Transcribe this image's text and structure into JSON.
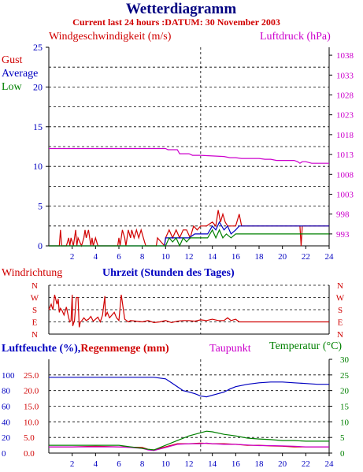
{
  "header": {
    "title": "Wetterdiagramm",
    "subtitle": "Current last 24 hours :DATUM: 30 November 2003"
  },
  "colors": {
    "title": "#000080",
    "subtitle": "#d00000",
    "gust": "#d00000",
    "average": "#0000c0",
    "low": "#008000",
    "pressure": "#cc00cc",
    "humidity": "#0000c0",
    "rain": "#d00000",
    "dewpoint": "#cc00cc",
    "temperature": "#008000",
    "axis": "#000000",
    "grid": "#000000"
  },
  "chart_data": [
    {
      "type": "line",
      "id": "wind-pressure",
      "title_left": "Windgeschwindigkeit (m/s)",
      "title_right": "Luftdruck (hPa)",
      "legend": [
        "Gust",
        "Average",
        "Low"
      ],
      "legend_position": "left",
      "xlim": [
        0,
        24
      ],
      "x_ticks": [
        2,
        4,
        6,
        8,
        10,
        12,
        14,
        16,
        18,
        20,
        22,
        24
      ],
      "ylim_left": [
        0,
        25
      ],
      "y_ticks_left": [
        0,
        5,
        10,
        15,
        20,
        25
      ],
      "ylim_right": [
        990,
        1040
      ],
      "y_ticks_right": [
        993,
        998,
        1003,
        1008,
        1013,
        1018,
        1023,
        1028,
        1033,
        1038
      ],
      "grid": true,
      "series": [
        {
          "name": "Gust",
          "axis": "left",
          "x": [
            0,
            0.9,
            1.0,
            1.1,
            1.5,
            1.7,
            1.8,
            1.9,
            2.1,
            2.3,
            2.4,
            2.5,
            2.8,
            3.0,
            3.1,
            3.2,
            3.4,
            3.6,
            3.7,
            3.8,
            4.0,
            4.2,
            4.5,
            5.9,
            6.0,
            6.1,
            6.3,
            6.5,
            6.6,
            6.8,
            7.0,
            7.1,
            7.3,
            7.5,
            7.7,
            7.9,
            8.1,
            8.3,
            9.2,
            9.3,
            9.9,
            10.0,
            10.3,
            10.6,
            10.9,
            11.2,
            11.5,
            11.8,
            12.1,
            12.4,
            12.7,
            13.0,
            13.5,
            14.0,
            14.3,
            14.5,
            14.7,
            14.9,
            15.1,
            15.3,
            15.6,
            16.0,
            16.3,
            16.5,
            17.0,
            18.0,
            19.0,
            20.0,
            21.0,
            21.5,
            21.6,
            21.7,
            22.0,
            23.0,
            24.0
          ],
          "y": [
            0,
            0,
            2,
            0,
            0,
            1,
            0,
            1,
            0,
            2,
            0,
            1,
            0,
            1,
            2,
            1,
            2,
            0,
            1,
            0,
            1,
            0,
            0,
            0,
            1,
            0,
            2,
            1,
            0,
            2,
            1,
            2,
            1,
            2,
            1,
            2,
            1,
            0,
            0,
            1,
            0,
            1,
            2,
            1,
            2,
            1,
            2,
            2,
            1,
            2.5,
            2,
            2.5,
            2.5,
            3,
            2.5,
            4.5,
            3,
            4,
            3,
            2.5,
            2.5,
            2.5,
            4,
            2.5,
            2.5,
            2.5,
            2.5,
            2.5,
            2.5,
            2.5,
            0,
            2.5,
            2.5,
            2.5,
            2.5
          ]
        },
        {
          "name": "Average",
          "axis": "left",
          "x": [
            0,
            9.9,
            10.0,
            10.4,
            10.8,
            11.2,
            11.6,
            12.0,
            12.5,
            13.0,
            13.6,
            14.0,
            14.3,
            14.6,
            15.0,
            15.3,
            15.6,
            16.0,
            16.3,
            16.6,
            17.0,
            24.0
          ],
          "y": [
            0,
            0,
            1,
            1,
            1,
            1,
            1,
            1,
            1.5,
            1.5,
            1.5,
            2.5,
            2,
            3,
            2,
            2.5,
            1.5,
            2,
            2.5,
            2.5,
            2.5,
            2.5
          ]
        },
        {
          "name": "Low",
          "axis": "left",
          "x": [
            0,
            10.0,
            10.3,
            10.6,
            10.9,
            11.2,
            11.5,
            11.8,
            12.1,
            12.4,
            13.0,
            13.6,
            14.0,
            14.3,
            14.6,
            14.9,
            15.2,
            15.6,
            16.0,
            16.3,
            16.6,
            24.0
          ],
          "y": [
            0,
            0,
            1,
            0.5,
            1,
            0,
            1,
            0.5,
            1,
            1,
            1,
            1,
            2,
            1,
            2,
            1,
            1.5,
            1,
            1.5,
            1.5,
            1.5,
            1.5
          ],
          "color": "#008000"
        },
        {
          "name": "Luftdruck",
          "axis": "right",
          "x": [
            0,
            10.0,
            10.2,
            11.0,
            11.2,
            12.0,
            12.3,
            13.0,
            15.0,
            15.5,
            16.0,
            16.5,
            18.0,
            18.5,
            19.0,
            19.5,
            21.0,
            21.3,
            21.5,
            21.7,
            22.0,
            22.5,
            24.0
          ],
          "y": [
            1014.5,
            1014.5,
            1014.2,
            1014.2,
            1013.2,
            1013.2,
            1012.8,
            1012.8,
            1012.5,
            1012.2,
            1012.2,
            1012.0,
            1012.0,
            1011.8,
            1011.8,
            1011.5,
            1011.5,
            1011.2,
            1010.8,
            1011.2,
            1011.2,
            1010.8,
            1010.8
          ]
        }
      ]
    },
    {
      "type": "line",
      "id": "wind-direction",
      "title_left": "Windrichtung",
      "xlabel": "Uhrzeit (Stunden des Tages)",
      "y_ticks": [
        "N",
        "W",
        "S",
        "E",
        "N"
      ],
      "ylim": [
        0,
        360
      ],
      "xlim": [
        0,
        24
      ],
      "grid": true,
      "series": [
        {
          "name": "Windrichtung",
          "x": [
            0,
            0.2,
            0.35,
            0.5,
            0.7,
            0.8,
            0.9,
            1.0,
            1.15,
            1.3,
            1.5,
            1.7,
            1.8,
            1.9,
            2.0,
            2.05,
            2.2,
            2.35,
            2.5,
            2.6,
            2.7,
            2.8,
            3.0,
            3.2,
            3.4,
            3.6,
            3.8,
            4.0,
            4.2,
            4.4,
            4.6,
            4.8,
            4.85,
            5.0,
            5.2,
            5.4,
            5.6,
            5.8,
            6.0,
            6.2,
            6.5,
            6.8,
            7.0,
            7.5,
            8.0,
            8.5,
            9.0,
            9.5,
            10.0,
            10.5,
            11.0,
            11.5,
            12.0,
            12.5,
            13.0,
            13.5,
            14.0,
            14.5,
            15.0,
            15.3,
            15.6,
            16.0,
            16.3,
            16.5,
            24.0
          ],
          "y": [
            180,
            220,
            180,
            290,
            220,
            260,
            160,
            190,
            170,
            140,
            200,
            120,
            90,
            100,
            290,
            60,
            100,
            270,
            270,
            50,
            90,
            95,
            120,
            100,
            110,
            130,
            95,
            110,
            125,
            90,
            140,
            280,
            130,
            160,
            120,
            140,
            160,
            120,
            100,
            290,
            110,
            90,
            100,
            95,
            90,
            100,
            85,
            90,
            100,
            85,
            95,
            100,
            100,
            95,
            105,
            100,
            110,
            100,
            100,
            120,
            100,
            110,
            90,
            90,
            90
          ]
        }
      ]
    },
    {
      "type": "line",
      "id": "humidity-temperature",
      "title_left": "Luftfeuchte (%),Regenmenge (mm)",
      "title_dewpoint": "Taupunkt",
      "title_right": "Temperatur (°C)",
      "xlim": [
        0,
        24
      ],
      "x_ticks": [
        2,
        4,
        6,
        8,
        10,
        12,
        14,
        16,
        18,
        20,
        22,
        24
      ],
      "ylim_left": [
        0,
        30
      ],
      "y_ticks_left_hum": [
        0,
        20,
        40,
        60,
        80,
        100
      ],
      "y_ticks_left_rain": [
        "0.0",
        "5.0",
        "10.0",
        "15.0",
        "20.0",
        "25.0"
      ],
      "ylim_right": [
        0,
        30
      ],
      "y_ticks_right": [
        0,
        5,
        10,
        15,
        20,
        25,
        30
      ],
      "grid": true,
      "series": [
        {
          "name": "Luftfeuchte",
          "axis": "left-humidity",
          "x": [
            0,
            1,
            2,
            3,
            4,
            5,
            6,
            7,
            8,
            9,
            10,
            10.5,
            11,
            11.5,
            12,
            12.5,
            13,
            13.5,
            14,
            14.5,
            15,
            15.5,
            16,
            17,
            18,
            19,
            20,
            21,
            22,
            23,
            24
          ],
          "y": [
            97,
            97,
            97,
            97,
            97,
            97,
            97,
            97,
            97,
            97,
            95,
            90,
            85,
            80,
            78,
            76,
            73,
            72,
            74,
            76,
            78,
            82,
            85,
            88,
            90,
            91,
            91,
            90,
            89,
            88,
            88
          ]
        },
        {
          "name": "Regenmenge",
          "axis": "left-rain",
          "x": [
            0,
            2,
            4,
            6,
            8,
            8.5,
            9,
            10,
            11,
            12,
            13,
            14,
            15,
            16,
            17,
            18,
            19,
            20,
            21,
            22,
            23,
            24
          ],
          "y": [
            2.0,
            2.0,
            2.2,
            2.0,
            1.8,
            1.2,
            1.0,
            2.0,
            3.0,
            3.0,
            3.2,
            3.0,
            3.0,
            2.8,
            2.5,
            2.5,
            2.3,
            2.2,
            2.0,
            2.0,
            2.0,
            2.0
          ]
        },
        {
          "name": "Taupunkt",
          "axis": "right",
          "x": [
            0,
            2,
            4,
            6,
            7,
            8,
            8.5,
            9,
            10,
            11,
            12,
            13,
            13.5,
            14,
            15,
            16,
            17,
            18,
            19,
            20,
            21,
            22,
            23,
            24
          ],
          "y": [
            2.0,
            2.0,
            2.0,
            2.0,
            1.8,
            1.5,
            1.0,
            0.8,
            1.8,
            2.8,
            3.0,
            3.0,
            3.2,
            3.0,
            2.8,
            2.8,
            2.6,
            2.4,
            2.4,
            2.3,
            2.2,
            2.0,
            2.0,
            2.0
          ]
        },
        {
          "name": "Temperatur",
          "axis": "right",
          "x": [
            0,
            2,
            4,
            6,
            7,
            8,
            8.5,
            9,
            10,
            11,
            12,
            13,
            13.5,
            14,
            15,
            16,
            17,
            18,
            19,
            20,
            21,
            22,
            23,
            24
          ],
          "y": [
            2.5,
            2.5,
            2.5,
            2.5,
            2.0,
            1.5,
            1.2,
            1.0,
            2.5,
            4.0,
            5.5,
            6.5,
            7.0,
            6.8,
            6.0,
            5.5,
            4.8,
            4.5,
            4.3,
            4.0,
            4.0,
            3.8,
            3.8,
            3.8
          ]
        }
      ]
    }
  ]
}
